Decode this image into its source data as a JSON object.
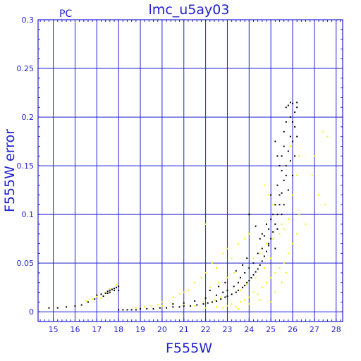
{
  "chart_data": {
    "type": "scatter",
    "title": "lmc_u5ay03",
    "corner_label": "PC",
    "xlabel": "F555W",
    "ylabel": "F555W error",
    "xlim": [
      14.3,
      28.3
    ],
    "ylim": [
      -0.01,
      0.3
    ],
    "x_ticks": [
      15,
      16,
      17,
      18,
      19,
      20,
      21,
      22,
      23,
      24,
      25,
      26,
      27,
      28
    ],
    "y_ticks": [
      0,
      0.05,
      0.1,
      0.15,
      0.2,
      0.25,
      0.3
    ],
    "grid": true,
    "colors": {
      "frame": "#1f1fd1",
      "black_series": "#000000",
      "yellow_series": "#f5f500"
    },
    "series": [
      {
        "color": "#000000",
        "points": [
          [
            14.8,
            0.004
          ],
          [
            15.2,
            0.004
          ],
          [
            15.6,
            0.005
          ],
          [
            16.0,
            0.006
          ],
          [
            16.3,
            0.007
          ],
          [
            16.6,
            0.01
          ],
          [
            16.9,
            0.013
          ],
          [
            17.0,
            0.017
          ],
          [
            17.2,
            0.018
          ],
          [
            17.4,
            0.019
          ],
          [
            17.5,
            0.021
          ],
          [
            17.6,
            0.022
          ],
          [
            17.7,
            0.023
          ],
          [
            17.8,
            0.024
          ],
          [
            17.9,
            0.025
          ],
          [
            18.0,
            0.026
          ],
          [
            17.6,
            0.02
          ],
          [
            17.8,
            0.022
          ],
          [
            18.0,
            0.022
          ],
          [
            17.3,
            0.016
          ],
          [
            17.5,
            0.019
          ],
          [
            18.0,
            0.002
          ],
          [
            18.2,
            0.002
          ],
          [
            18.4,
            0.002
          ],
          [
            18.6,
            0.002
          ],
          [
            18.8,
            0.002
          ],
          [
            19.0,
            0.003
          ],
          [
            19.3,
            0.003
          ],
          [
            19.6,
            0.003
          ],
          [
            19.9,
            0.004
          ],
          [
            20.2,
            0.004
          ],
          [
            20.5,
            0.005
          ],
          [
            20.8,
            0.005
          ],
          [
            21.0,
            0.006
          ],
          [
            21.3,
            0.006
          ],
          [
            21.6,
            0.007
          ],
          [
            21.9,
            0.008
          ],
          [
            22.1,
            0.009
          ],
          [
            22.3,
            0.01
          ],
          [
            22.5,
            0.011
          ],
          [
            22.7,
            0.013
          ],
          [
            22.9,
            0.015
          ],
          [
            23.0,
            0.016
          ],
          [
            23.2,
            0.018
          ],
          [
            23.4,
            0.02
          ],
          [
            23.5,
            0.022
          ],
          [
            23.7,
            0.025
          ],
          [
            23.8,
            0.027
          ],
          [
            23.9,
            0.03
          ],
          [
            24.0,
            0.032
          ],
          [
            24.1,
            0.035
          ],
          [
            24.2,
            0.038
          ],
          [
            24.3,
            0.041
          ],
          [
            24.4,
            0.044
          ],
          [
            24.5,
            0.048
          ],
          [
            24.6,
            0.052
          ],
          [
            24.7,
            0.057
          ],
          [
            24.8,
            0.062
          ],
          [
            24.9,
            0.068
          ],
          [
            25.0,
            0.075
          ],
          [
            25.1,
            0.082
          ],
          [
            25.2,
            0.09
          ],
          [
            25.3,
            0.1
          ],
          [
            25.4,
            0.11
          ],
          [
            25.5,
            0.122
          ],
          [
            25.6,
            0.135
          ],
          [
            25.7,
            0.15
          ],
          [
            25.8,
            0.165
          ],
          [
            25.9,
            0.18
          ],
          [
            26.0,
            0.195
          ],
          [
            26.1,
            0.205
          ],
          [
            26.2,
            0.21
          ],
          [
            25.8,
            0.212
          ],
          [
            26.0,
            0.214
          ],
          [
            26.2,
            0.215
          ],
          [
            25.7,
            0.21
          ],
          [
            25.9,
            0.2
          ],
          [
            26.1,
            0.19
          ],
          [
            25.6,
            0.17
          ],
          [
            25.7,
            0.14
          ],
          [
            25.5,
            0.145
          ],
          [
            25.4,
            0.15
          ],
          [
            25.3,
            0.16
          ],
          [
            25.9,
            0.155
          ],
          [
            26.0,
            0.175
          ],
          [
            25.6,
            0.185
          ],
          [
            25.4,
            0.12
          ],
          [
            25.2,
            0.11
          ],
          [
            25.0,
            0.095
          ],
          [
            24.8,
            0.09
          ],
          [
            24.6,
            0.08
          ],
          [
            24.5,
            0.075
          ],
          [
            24.9,
            0.085
          ],
          [
            25.1,
            0.1
          ],
          [
            25.3,
            0.13
          ],
          [
            25.6,
            0.11
          ],
          [
            25.8,
            0.125
          ],
          [
            26.0,
            0.14
          ],
          [
            24.0,
            0.045
          ],
          [
            24.2,
            0.05
          ],
          [
            23.8,
            0.04
          ],
          [
            23.6,
            0.035
          ],
          [
            23.5,
            0.03
          ],
          [
            23.3,
            0.026
          ],
          [
            23.0,
            0.022
          ],
          [
            22.8,
            0.02
          ],
          [
            22.5,
            0.017
          ],
          [
            22.0,
            0.014
          ],
          [
            21.5,
            0.011
          ],
          [
            21.0,
            0.009
          ],
          [
            20.5,
            0.008
          ],
          [
            24.4,
            0.06
          ],
          [
            24.6,
            0.065
          ],
          [
            24.9,
            0.07
          ],
          [
            25.2,
            0.065
          ],
          [
            24.0,
            0.1
          ],
          [
            25.2,
            0.175
          ],
          [
            24.3,
            0.088
          ],
          [
            23.9,
            0.055
          ],
          [
            23.7,
            0.048
          ],
          [
            23.4,
            0.042
          ],
          [
            22.9,
            0.03
          ],
          [
            22.6,
            0.026
          ],
          [
            22.2,
            0.022
          ],
          [
            24.7,
            0.078
          ],
          [
            25.0,
            0.12
          ],
          [
            25.5,
            0.16
          ],
          [
            25.7,
            0.195
          ],
          [
            26.1,
            0.16
          ],
          [
            26.2,
            0.18
          ],
          [
            25.9,
            0.215
          ],
          [
            25.5,
            0.1
          ],
          [
            25.3,
            0.085
          ]
        ]
      },
      {
        "color": "#f5f500",
        "points": [
          [
            16.5,
            0.011
          ],
          [
            16.8,
            0.013
          ],
          [
            17.0,
            0.016
          ],
          [
            17.2,
            0.014
          ],
          [
            17.4,
            0.02
          ],
          [
            17.6,
            0.024
          ],
          [
            17.9,
            0.028
          ],
          [
            19.5,
            0.006
          ],
          [
            20.0,
            0.01
          ],
          [
            20.5,
            0.015
          ],
          [
            20.8,
            0.018
          ],
          [
            21.0,
            0.02
          ],
          [
            21.2,
            0.022
          ],
          [
            21.5,
            0.03
          ],
          [
            21.8,
            0.035
          ],
          [
            22.0,
            0.04
          ],
          [
            22.3,
            0.05
          ],
          [
            22.5,
            0.045
          ],
          [
            22.8,
            0.06
          ],
          [
            22.0,
            0.09
          ],
          [
            23.0,
            0.065
          ],
          [
            23.2,
            0.055
          ],
          [
            23.5,
            0.07
          ],
          [
            23.8,
            0.075
          ],
          [
            24.0,
            0.08
          ],
          [
            22.5,
            0.005
          ],
          [
            22.8,
            0.004
          ],
          [
            23.0,
            0.006
          ],
          [
            23.2,
            0.008
          ],
          [
            23.4,
            0.005
          ],
          [
            23.6,
            0.01
          ],
          [
            23.8,
            0.012
          ],
          [
            24.0,
            0.015
          ],
          [
            24.2,
            0.02
          ],
          [
            24.4,
            0.018
          ],
          [
            24.6,
            0.025
          ],
          [
            24.8,
            0.03
          ],
          [
            25.0,
            0.035
          ],
          [
            25.2,
            0.04
          ],
          [
            25.4,
            0.045
          ],
          [
            25.6,
            0.05
          ],
          [
            25.8,
            0.06
          ],
          [
            26.0,
            0.07
          ],
          [
            26.2,
            0.08
          ],
          [
            26.3,
            0.1
          ],
          [
            25.5,
            0.09
          ],
          [
            25.3,
            0.1
          ],
          [
            25.1,
            0.11
          ],
          [
            24.9,
            0.12
          ],
          [
            24.7,
            0.13
          ],
          [
            25.7,
            0.15
          ],
          [
            25.9,
            0.17
          ],
          [
            26.1,
            0.19
          ],
          [
            27.4,
            0.185
          ],
          [
            27.6,
            0.18
          ],
          [
            27.0,
            0.16
          ],
          [
            26.9,
            0.14
          ],
          [
            27.2,
            0.12
          ],
          [
            27.5,
            0.11
          ],
          [
            26.6,
            0.09
          ],
          [
            25.0,
            0.01
          ],
          [
            24.5,
            0.012
          ],
          [
            24.0,
            0.008
          ],
          [
            23.5,
            0.003
          ],
          [
            22.0,
            0.004
          ],
          [
            21.5,
            0.006
          ],
          [
            21.0,
            0.007
          ],
          [
            20.5,
            0.008
          ],
          [
            20.0,
            0.006
          ],
          [
            19.8,
            0.007
          ],
          [
            18.8,
            0.004
          ],
          [
            19.2,
            0.005
          ],
          [
            22.2,
            0.025
          ],
          [
            22.6,
            0.03
          ],
          [
            23.0,
            0.035
          ],
          [
            23.3,
            0.04
          ],
          [
            24.2,
            0.055
          ],
          [
            24.5,
            0.06
          ],
          [
            24.8,
            0.07
          ],
          [
            25.1,
            0.075
          ],
          [
            25.4,
            0.08
          ],
          [
            25.6,
            0.085
          ],
          [
            25.8,
            0.095
          ],
          [
            26.0,
            0.12
          ],
          [
            26.2,
            0.14
          ],
          [
            26.3,
            0.16
          ],
          [
            25.2,
            0.02
          ],
          [
            25.5,
            0.03
          ],
          [
            25.7,
            0.04
          ],
          [
            23.6,
            0.022
          ],
          [
            23.9,
            0.028
          ],
          [
            22.4,
            0.012
          ],
          [
            22.7,
            0.015
          ],
          [
            21.9,
            0.01
          ],
          [
            24.3,
            0.035
          ],
          [
            24.7,
            0.045
          ],
          [
            25.0,
            0.055
          ]
        ]
      }
    ]
  }
}
